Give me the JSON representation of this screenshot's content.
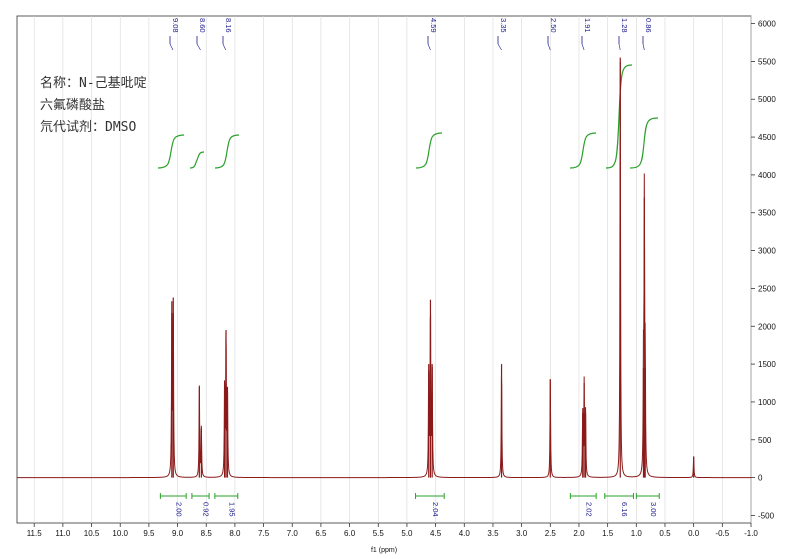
{
  "annotation": {
    "line1": "名称：N-己基吡啶",
    "line2": "六氟磷酸盐",
    "line3": "氘代试剂：DMSO"
  },
  "chart_data": {
    "type": "line",
    "title": "",
    "xlabel": "f1 (ppm)",
    "ylabel": "",
    "xlim": [
      11.8,
      -1.0
    ],
    "ylim": [
      -600,
      6100
    ],
    "x_reversed": true,
    "grid": true,
    "x_ticks": [
      "11.5",
      "11.0",
      "10.5",
      "10.0",
      "9.5",
      "9.0",
      "8.5",
      "8.0",
      "7.5",
      "7.0",
      "6.5",
      "6.0",
      "5.5",
      "5.0",
      "4.5",
      "4.0",
      "3.5",
      "3.0",
      "2.5",
      "2.0",
      "1.5",
      "1.0",
      "0.5",
      "0.0",
      "-0.5",
      "-1.0"
    ],
    "y_ticks": [
      "6000",
      "5500",
      "5000",
      "4500",
      "4000",
      "3500",
      "3000",
      "2500",
      "2000",
      "1500",
      "1000",
      "500",
      "0",
      "-500"
    ],
    "series": [
      {
        "peaks": [
          {
            "ppm": 9.1,
            "height": 2330
          },
          {
            "ppm": 9.075,
            "height": 2380
          },
          {
            "ppm": 8.62,
            "height": 1200
          },
          {
            "ppm": 8.585,
            "height": 650
          },
          {
            "ppm": 8.18,
            "height": 1250
          },
          {
            "ppm": 8.155,
            "height": 1950
          },
          {
            "ppm": 8.13,
            "height": 1200
          },
          {
            "ppm": 4.62,
            "height": 1500
          },
          {
            "ppm": 4.59,
            "height": 2350
          },
          {
            "ppm": 4.56,
            "height": 1500
          },
          {
            "ppm": 3.35,
            "height": 1500
          },
          {
            "ppm": 2.5,
            "height": 1300
          },
          {
            "ppm": 1.935,
            "height": 850
          },
          {
            "ppm": 1.91,
            "height": 1250
          },
          {
            "ppm": 1.885,
            "height": 850
          },
          {
            "ppm": 1.28,
            "height": 5550
          },
          {
            "ppm": 0.875,
            "height": 1450
          },
          {
            "ppm": 0.86,
            "height": 3700
          },
          {
            "ppm": 0.845,
            "height": 1450
          },
          {
            "ppm": 0.0,
            "height": 280
          }
        ]
      }
    ],
    "peak_labels": [
      "9.08",
      "8.60",
      "8.16",
      "4.59",
      "3.35",
      "2.50",
      "1.91",
      "1.28",
      "0.86"
    ],
    "peak_label_ppm": [
      9.08,
      8.6,
      8.16,
      4.59,
      3.35,
      2.5,
      1.91,
      1.28,
      0.86
    ],
    "integrals": [
      {
        "from": 9.3,
        "to": 8.85,
        "value": "2.00"
      },
      {
        "from": 8.75,
        "to": 8.45,
        "value": "0.92"
      },
      {
        "from": 8.35,
        "to": 7.95,
        "value": "1.95"
      },
      {
        "from": 4.85,
        "to": 4.35,
        "value": "2.04"
      },
      {
        "from": 2.15,
        "to": 1.7,
        "value": "2.02"
      },
      {
        "from": 1.55,
        "to": 1.05,
        "value": "6.16"
      },
      {
        "from": 1.0,
        "to": 0.6,
        "value": "3.00"
      }
    ],
    "colors": {
      "spectrum": "#8b1a1a",
      "integral": "#2aa02a",
      "peak_marker": "#1a1a8a",
      "grid": "#d8d8d8"
    }
  }
}
